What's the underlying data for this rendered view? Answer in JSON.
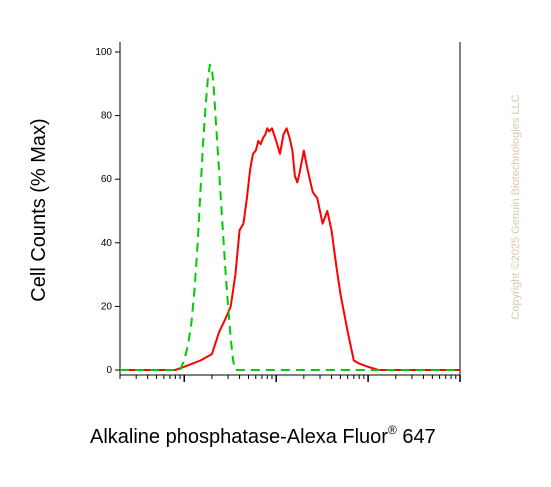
{
  "chart_data": {
    "type": "line",
    "xlabel_main": "Alkaline phosphatase-Alexa Fluor",
    "xlabel_sup": "®",
    "xlabel_tail": " 647",
    "ylabel": "Cell Counts (% Max)",
    "ylim": [
      0,
      100
    ],
    "y_ticks": [
      "100",
      "80",
      "60",
      "40",
      "20",
      "0"
    ],
    "x_scale": "log",
    "grid": false,
    "series": [
      {
        "color": "#ff0000",
        "style": "solid",
        "x": [
          0.2,
          0.8,
          1.0,
          1.5,
          2.0,
          2.4,
          2.8,
          3.2,
          3.6,
          4.0,
          4.4,
          4.8,
          5.2,
          5.6,
          6.0,
          6.4,
          6.8,
          7.2,
          7.6,
          8.0,
          8.4,
          9.0,
          10.0,
          11.0,
          12.0,
          13.0,
          14.0,
          15.0,
          16.0,
          17.0,
          18.0,
          20.0,
          22.0,
          25.0,
          28.0,
          32.0,
          36.0,
          40.0,
          45.0,
          50.0,
          60.0,
          70.0,
          80.0,
          100.0,
          130.0,
          170.0,
          300.0,
          1000.0
        ],
        "values": [
          0,
          0,
          1,
          3,
          5,
          12,
          16,
          20,
          30,
          44,
          46,
          54,
          63,
          68,
          69,
          72,
          71,
          73,
          74,
          76,
          75,
          76,
          72,
          68,
          74,
          76,
          73,
          69,
          61,
          59,
          62,
          69,
          63,
          56,
          54,
          46,
          50,
          44,
          33,
          24,
          12,
          3,
          2,
          1,
          0,
          0,
          0,
          0
        ]
      },
      {
        "color": "#00cc00",
        "style": "dashed",
        "x": [
          0.2,
          0.8,
          0.9,
          1.0,
          1.1,
          1.2,
          1.3,
          1.4,
          1.5,
          1.6,
          1.7,
          1.8,
          1.9,
          2.0,
          2.1,
          2.2,
          2.4,
          2.6,
          2.8,
          3.0,
          3.2,
          3.4,
          3.6,
          4.0,
          4.5,
          5.0,
          6.0,
          10.0,
          100.0,
          1000.0
        ],
        "values": [
          0,
          0,
          0,
          3,
          8,
          15,
          26,
          40,
          56,
          71,
          82,
          91,
          96,
          95,
          88,
          79,
          62,
          46,
          32,
          20,
          10,
          3,
          0,
          0,
          0,
          0,
          0,
          0,
          0,
          0
        ]
      }
    ]
  },
  "watermark": "Copyright ©2025 Genuin Biotechnologies LLC"
}
